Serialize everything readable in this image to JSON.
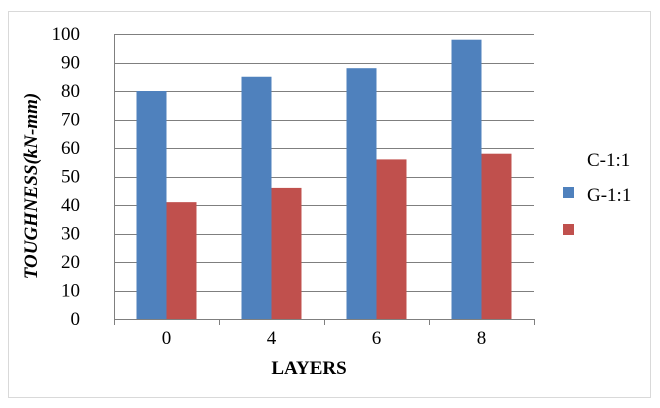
{
  "chart_data": {
    "type": "bar",
    "categories": [
      "0",
      "4",
      "6",
      "8"
    ],
    "series": [
      {
        "name": "C-1:1",
        "color": "#4F81BD",
        "values": [
          80,
          85,
          88,
          98
        ]
      },
      {
        "name": "G-1:1",
        "color": "#C0504D",
        "values": [
          41,
          46,
          56,
          58
        ]
      }
    ],
    "xlabel": "LAYERS",
    "ylabel": "TOUGHNESS(kN-mm)",
    "ylim": [
      0,
      100
    ],
    "yticks": [
      0,
      10,
      20,
      30,
      40,
      50,
      60,
      70,
      80,
      90,
      100
    ],
    "grid": true,
    "legend_position": "right"
  }
}
